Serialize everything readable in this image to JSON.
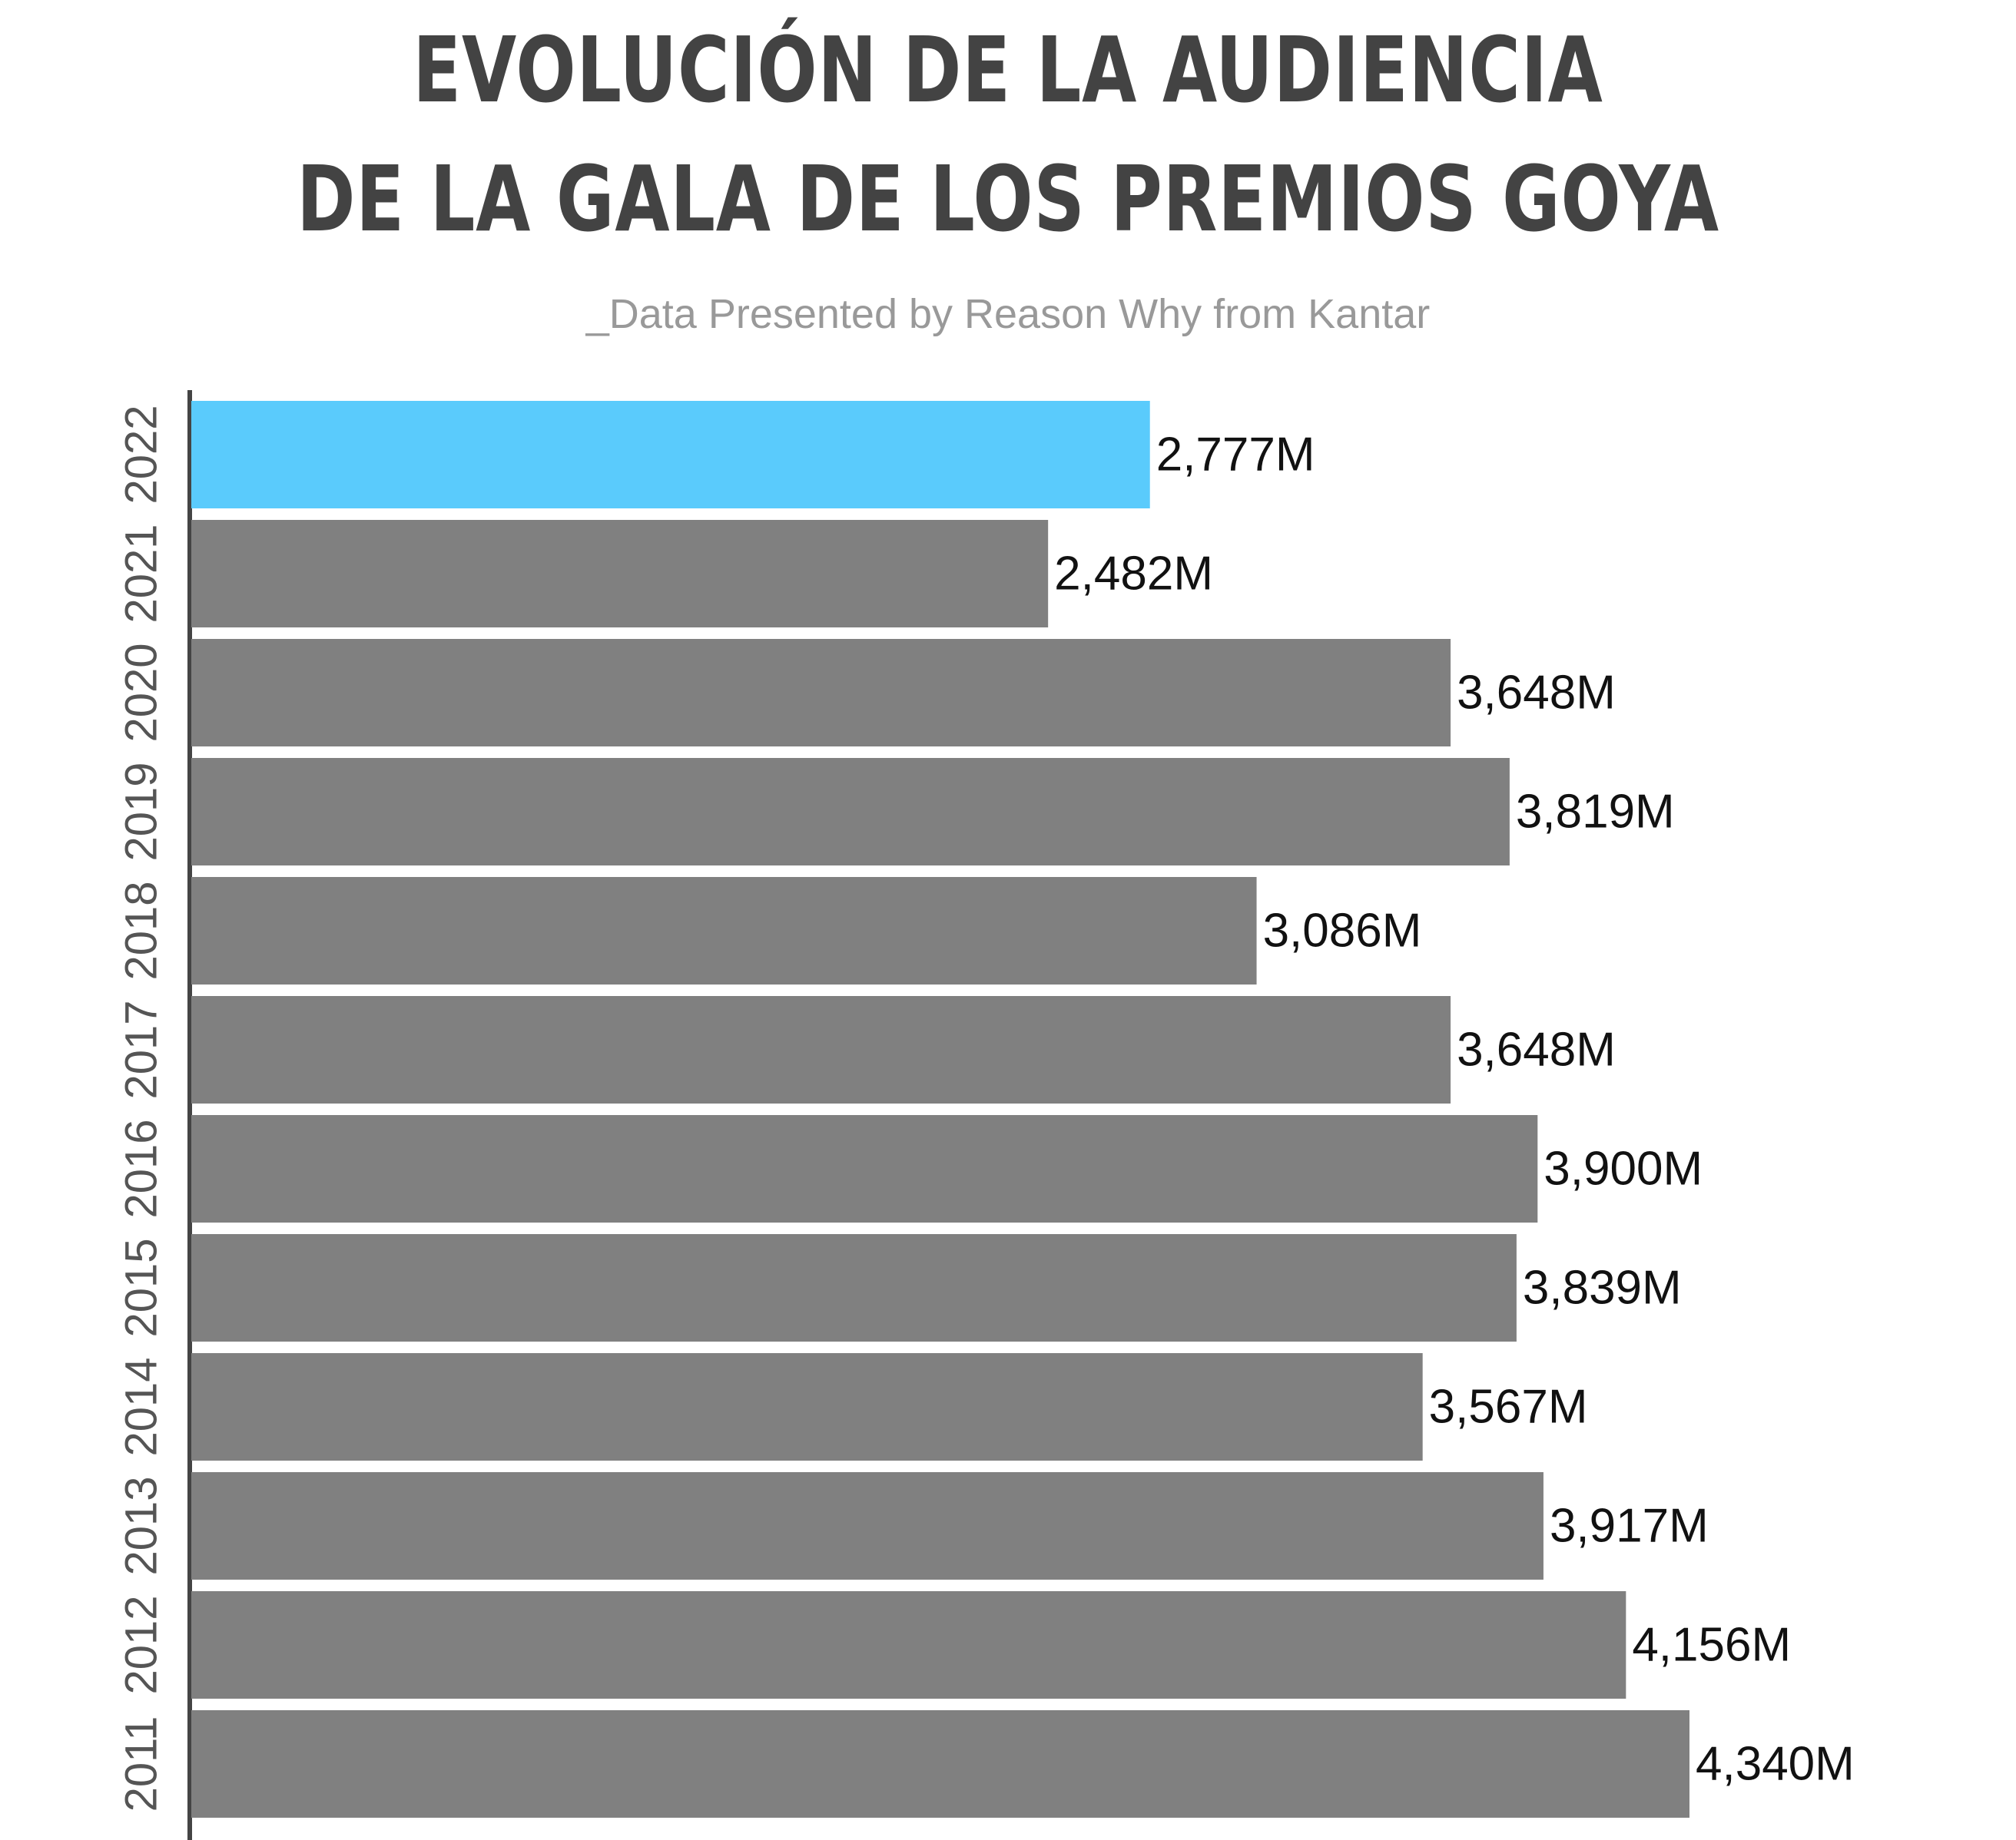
{
  "title": {
    "line1": "EVOLUCIÓN DE LA AUDIENCIA",
    "line2": "DE LA GALA DE LOS PREMIOS GOYA"
  },
  "subtitle": "_Data Presented by Reason Why from Kantar",
  "colors": {
    "highlight": "#5ACBFC",
    "bar": "#808080",
    "axis": "#444444"
  },
  "chart_data": {
    "type": "bar",
    "orientation": "horizontal",
    "categories": [
      "2022",
      "2021",
      "2020",
      "2019",
      "2018",
      "2017",
      "2016",
      "2015",
      "2014",
      "2013",
      "2012",
      "2011"
    ],
    "values": [
      2.777,
      2.482,
      3.648,
      3.819,
      3.086,
      3.648,
      3.9,
      3.839,
      3.567,
      3.917,
      4.156,
      4.34
    ],
    "labels": [
      "2,777M",
      "2,482M",
      "3,648M",
      "3,819M",
      "3,086M",
      "3,648M",
      "3,900M",
      "3,839M",
      "3,567M",
      "3,917M",
      "4,156M",
      "4,340M"
    ],
    "highlight_category": "2022",
    "xlim": [
      0,
      4.34
    ],
    "grid": false,
    "legend": "none"
  }
}
